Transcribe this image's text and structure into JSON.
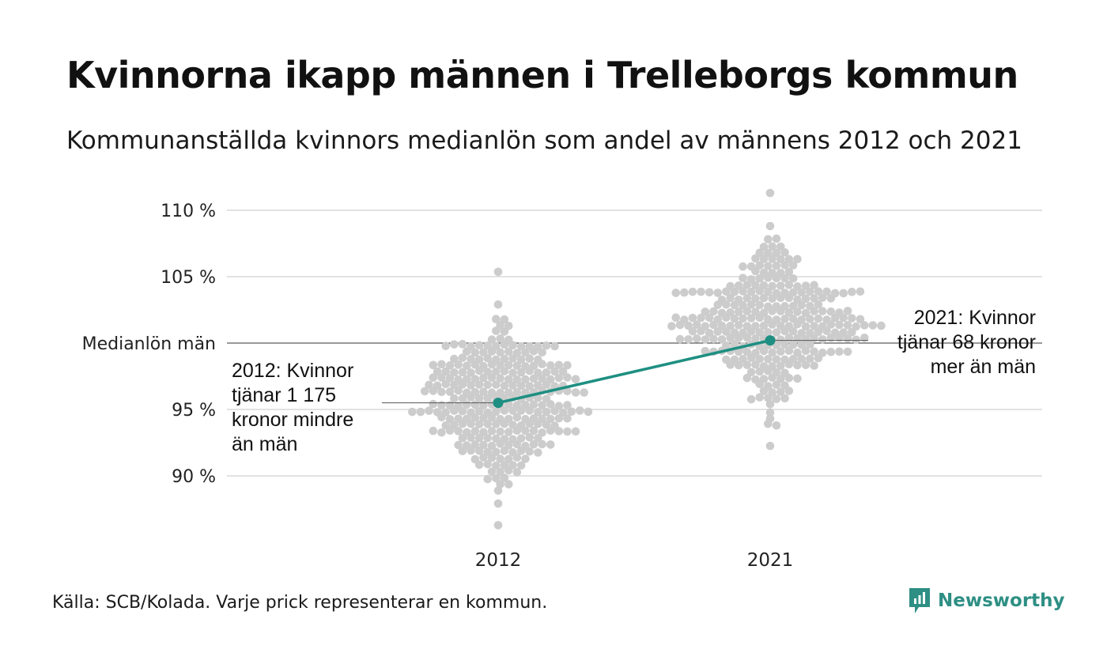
{
  "header": {
    "title": "Kvinnorna ikapp männen i Trelleborgs kommun",
    "subtitle": "Kommunanställda kvinnors medianlön som andel av männens 2012 och 2021"
  },
  "footer": {
    "source": "Källa: SCB/Kolada. Varje prick representerar en kommun.",
    "brand": "Newsworthy"
  },
  "colors": {
    "dots": "#cccccc",
    "highlight": "#1e8f82",
    "grid": "#e2e2e2",
    "reference_line": "#333333"
  },
  "chart_data": {
    "type": "scatter",
    "subtype": "beeswarm",
    "categories": [
      "2012",
      "2021"
    ],
    "yticks": [
      {
        "value": 90,
        "label": "90 %"
      },
      {
        "value": 95,
        "label": "95 %"
      },
      {
        "value": 100,
        "label": "Medianlön män"
      },
      {
        "value": 105,
        "label": "105 %"
      },
      {
        "value": 110,
        "label": "110 %"
      }
    ],
    "ylim": [
      85,
      112
    ],
    "grid": true,
    "reference_value": 100,
    "distributions": [
      {
        "category": "2012",
        "min": 86.5,
        "max": 105.2,
        "center": 95.5,
        "spread": 2.9,
        "count": 290
      },
      {
        "category": "2021",
        "min": 92.5,
        "max": 111.4,
        "center": 101.5,
        "spread": 2.7,
        "count": 290
      }
    ],
    "highlight": {
      "name": "Trelleborg",
      "points": [
        {
          "x": "2012",
          "y": 95.5
        },
        {
          "x": "2021",
          "y": 100.2
        }
      ]
    },
    "annotations": [
      {
        "x": "2012",
        "lines": [
          "2012: Kvinnor",
          "tjänar 1 175",
          "kronor mindre",
          "än män"
        ]
      },
      {
        "x": "2021",
        "lines": [
          "2021: Kvinnor",
          "tjänar 68 kronor",
          "mer än män"
        ]
      }
    ]
  }
}
